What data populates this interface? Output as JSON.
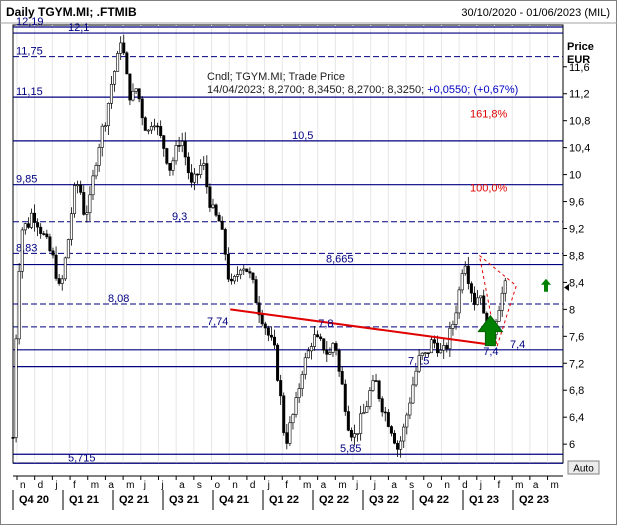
{
  "header": {
    "title": "Daily TGYM.MI; .FTMIB",
    "date_range": "30/10/2020 - 01/06/2023 (MIL)"
  },
  "info": {
    "line1": "Cndl; TGYM.MI; Trade Price",
    "line2_prefix": "14/04/2023; 8,2700; 8,3450; 8,2700; 8,3250; ",
    "line2_change": "+0,0550; (+0,67%)"
  },
  "axis": {
    "unit_line1": "Price",
    "unit_line2": "EUR",
    "auto_label": "Auto"
  },
  "chart_data": {
    "type": "candlestick",
    "ylim": [
      5.72,
      12.22
    ],
    "y_ticks": [
      {
        "v": 11.6,
        "label": "11,6"
      },
      {
        "v": 11.2,
        "label": "11,2"
      },
      {
        "v": 10.8,
        "label": "10,8"
      },
      {
        "v": 10.4,
        "label": "10,4"
      },
      {
        "v": 10.0,
        "label": "10"
      },
      {
        "v": 9.6,
        "label": "9,6"
      },
      {
        "v": 9.2,
        "label": "9,2"
      },
      {
        "v": 8.8,
        "label": "8,8"
      },
      {
        "v": 8.4,
        "label": "8,4"
      },
      {
        "v": 8.0,
        "label": "8"
      },
      {
        "v": 7.6,
        "label": "7,6"
      },
      {
        "v": 7.2,
        "label": "7,2"
      },
      {
        "v": 6.8,
        "label": "6,8"
      },
      {
        "v": 6.4,
        "label": "6,4"
      },
      {
        "v": 6.0,
        "label": "6"
      }
    ],
    "month_ticks": [
      "n",
      "d",
      "j",
      "f",
      "m",
      "a",
      "m",
      "j",
      "j",
      "a",
      "s",
      "o",
      "n",
      "d",
      "j",
      "f",
      "m",
      "a",
      "m",
      "j",
      "j",
      "a",
      "s",
      "o",
      "n",
      "d",
      "j",
      "f",
      "m",
      "a",
      "m"
    ],
    "quarter_labels": [
      "Q4 20",
      "Q1 21",
      "Q2 21",
      "Q3 21",
      "Q4 21",
      "Q1 22",
      "Q2 22",
      "Q3 22",
      "Q4 22",
      "Q1 23",
      "Q2 23"
    ],
    "horizontal_levels": [
      {
        "v": 12.19,
        "label": "12,19",
        "style": "solid"
      },
      {
        "v": 12.1,
        "label": "12,1",
        "style": "solid"
      },
      {
        "v": 11.75,
        "label": "11,75",
        "style": "dashed"
      },
      {
        "v": 11.15,
        "label": "11,15",
        "style": "solid"
      },
      {
        "v": 10.5,
        "label": "10,5",
        "style": "solid"
      },
      {
        "v": 9.85,
        "label": "9,85",
        "style": "solid"
      },
      {
        "v": 9.3,
        "label": "9,3",
        "style": "dashed"
      },
      {
        "v": 8.83,
        "label": "8,83",
        "style": "dashed"
      },
      {
        "v": 8.665,
        "label": "8,665",
        "style": "solid"
      },
      {
        "v": 8.08,
        "label": "8,08",
        "style": "dashed"
      },
      {
        "v": 7.74,
        "label": "7,74",
        "style": "dashed"
      },
      {
        "v": 7.4,
        "label": "7,4",
        "style": "solid"
      },
      {
        "v": 7.15,
        "label": "7,15",
        "style": "solid"
      },
      {
        "v": 5.85,
        "label": "5,85",
        "style": "solid"
      },
      {
        "v": 5.715,
        "label": "5,715",
        "style": "solid"
      }
    ],
    "fib_labels": [
      {
        "v": 10.85,
        "label": "161,8%"
      },
      {
        "v": 9.75,
        "label": "100,0%"
      }
    ],
    "trendline": {
      "from": [
        0.395,
        8.0
      ],
      "to": [
        0.865,
        7.48
      ],
      "color": "#e00000"
    },
    "annotations": [
      {
        "text": "7,8",
        "v": 7.8,
        "x": 0.555
      },
      {
        "text": "7,4",
        "v": 7.38,
        "x": 0.855
      }
    ],
    "last_price": 8.325,
    "price_path": [
      [
        0.0,
        6.1
      ],
      [
        0.004,
        7.3
      ],
      [
        0.008,
        8.1
      ],
      [
        0.012,
        8.8
      ],
      [
        0.018,
        9.3
      ],
      [
        0.025,
        9.2
      ],
      [
        0.035,
        9.45
      ],
      [
        0.045,
        9.3
      ],
      [
        0.055,
        9.1
      ],
      [
        0.065,
        8.9
      ],
      [
        0.075,
        8.7
      ],
      [
        0.085,
        8.25
      ],
      [
        0.09,
        8.45
      ],
      [
        0.1,
        9.0
      ],
      [
        0.11,
        9.7
      ],
      [
        0.12,
        9.9
      ],
      [
        0.13,
        9.4
      ],
      [
        0.14,
        9.6
      ],
      [
        0.15,
        10.2
      ],
      [
        0.16,
        10.6
      ],
      [
        0.17,
        10.9
      ],
      [
        0.18,
        11.4
      ],
      [
        0.19,
        11.7
      ],
      [
        0.197,
        12.1
      ],
      [
        0.205,
        11.5
      ],
      [
        0.215,
        11.1
      ],
      [
        0.225,
        11.3
      ],
      [
        0.235,
        10.9
      ],
      [
        0.245,
        10.6
      ],
      [
        0.255,
        10.9
      ],
      [
        0.265,
        10.6
      ],
      [
        0.275,
        10.4
      ],
      [
        0.285,
        10.1
      ],
      [
        0.295,
        10.3
      ],
      [
        0.305,
        10.6
      ],
      [
        0.315,
        10.2
      ],
      [
        0.325,
        9.8
      ],
      [
        0.335,
        10.0
      ],
      [
        0.345,
        10.2
      ],
      [
        0.355,
        9.7
      ],
      [
        0.365,
        9.4
      ],
      [
        0.375,
        9.3
      ],
      [
        0.385,
        8.9
      ],
      [
        0.395,
        8.3
      ],
      [
        0.405,
        8.45
      ],
      [
        0.415,
        8.7
      ],
      [
        0.425,
        8.6
      ],
      [
        0.435,
        8.4
      ],
      [
        0.445,
        8.05
      ],
      [
        0.455,
        7.85
      ],
      [
        0.465,
        7.6
      ],
      [
        0.475,
        7.4
      ],
      [
        0.485,
        6.8
      ],
      [
        0.495,
        6.0
      ],
      [
        0.505,
        6.3
      ],
      [
        0.515,
        6.6
      ],
      [
        0.525,
        7.1
      ],
      [
        0.535,
        7.3
      ],
      [
        0.545,
        7.6
      ],
      [
        0.555,
        7.5
      ],
      [
        0.565,
        7.45
      ],
      [
        0.575,
        7.3
      ],
      [
        0.585,
        7.6
      ],
      [
        0.592,
        7.1
      ],
      [
        0.6,
        6.8
      ],
      [
        0.61,
        6.3
      ],
      [
        0.62,
        6.1
      ],
      [
        0.63,
        6.3
      ],
      [
        0.64,
        6.5
      ],
      [
        0.65,
        6.8
      ],
      [
        0.66,
        6.9
      ],
      [
        0.67,
        6.6
      ],
      [
        0.68,
        6.4
      ],
      [
        0.69,
        6.2
      ],
      [
        0.7,
        5.92
      ],
      [
        0.71,
        6.2
      ],
      [
        0.72,
        6.6
      ],
      [
        0.73,
        7.0
      ],
      [
        0.74,
        7.3
      ],
      [
        0.75,
        7.3
      ],
      [
        0.76,
        7.5
      ],
      [
        0.77,
        7.5
      ],
      [
        0.78,
        7.3
      ],
      [
        0.79,
        7.5
      ],
      [
        0.8,
        7.8
      ],
      [
        0.81,
        8.2
      ],
      [
        0.82,
        8.83
      ],
      [
        0.83,
        8.4
      ],
      [
        0.84,
        8.1
      ],
      [
        0.85,
        8.3
      ],
      [
        0.858,
        7.7
      ],
      [
        0.868,
        7.5
      ],
      [
        0.878,
        7.9
      ],
      [
        0.888,
        8.2
      ],
      [
        0.895,
        8.325
      ]
    ]
  }
}
